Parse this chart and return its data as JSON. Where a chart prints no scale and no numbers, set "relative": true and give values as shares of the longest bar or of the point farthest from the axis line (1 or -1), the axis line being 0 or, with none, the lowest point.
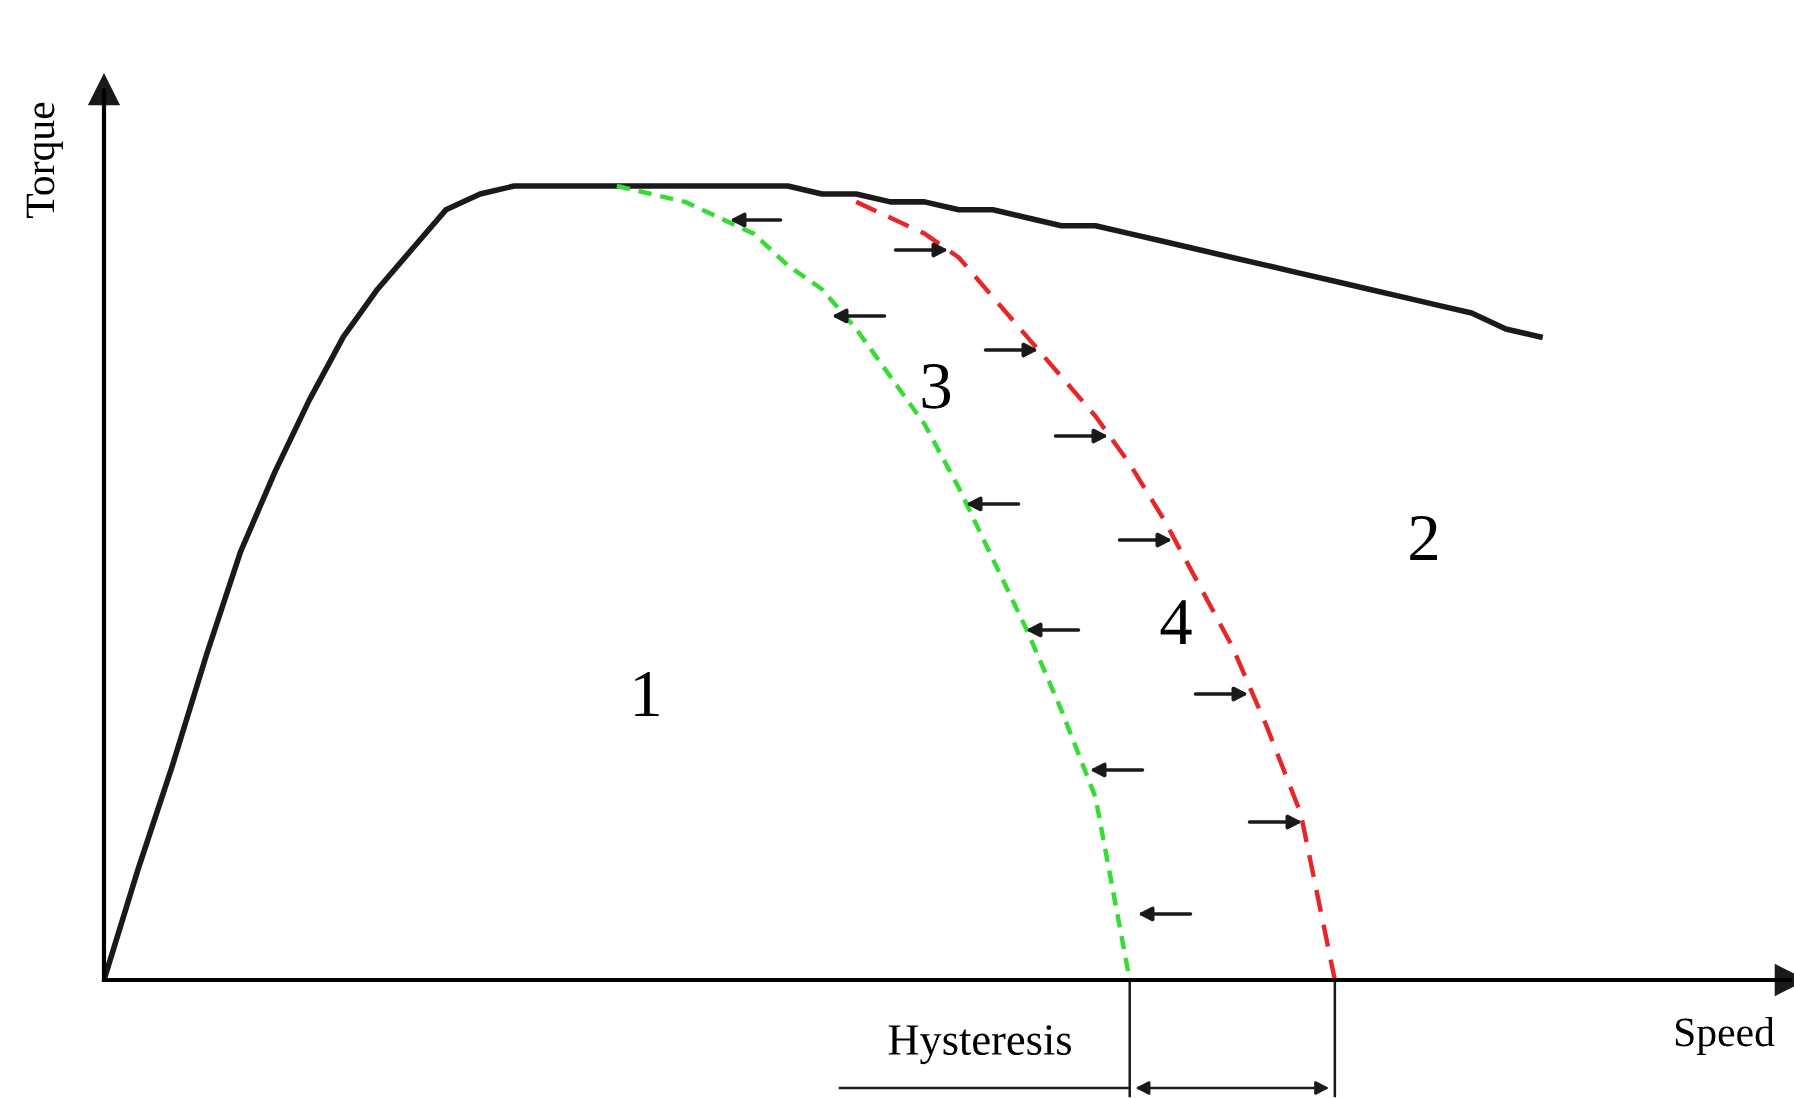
{
  "chart_data": {
    "type": "line",
    "relative": true,
    "xlabel": "Speed",
    "ylabel": "Torque",
    "legend": false,
    "marker": "none",
    "annotations": [
      "1",
      "2",
      "3",
      "4",
      "Hysteresis"
    ],
    "categories": [
      null,
      null,
      null,
      null,
      null,
      null,
      null,
      null,
      null,
      null,
      null,
      null,
      null,
      null,
      null,
      null,
      null,
      null,
      null,
      null,
      null,
      null,
      null,
      null,
      null,
      null,
      null,
      null,
      null,
      null,
      null,
      null,
      null,
      null,
      null,
      null,
      null,
      null,
      null,
      null,
      null,
      null,
      null
    ],
    "series": [
      {
        "color": "#1a1a1a",
        "line_style": "solid",
        "values": [
          0,
          0.14,
          0.27,
          0.41,
          0.54,
          0.64,
          0.73,
          0.81,
          0.87,
          0.92,
          0.97,
          0.99,
          1,
          1,
          1,
          1,
          1,
          1,
          1,
          1,
          1,
          0.99,
          0.99,
          0.98,
          0.98,
          0.97,
          0.97,
          0.96,
          0.95,
          0.95,
          0.94,
          0.93,
          0.92,
          0.91,
          0.9,
          0.89,
          0.88,
          0.87,
          0.86,
          0.85,
          0.84,
          0.82,
          0.81
        ]
      },
      {
        "color": "#33dd33",
        "line_style": "dotted",
        "values": [
          null,
          null,
          null,
          null,
          null,
          null,
          null,
          null,
          null,
          null,
          null,
          null,
          null,
          null,
          null,
          1,
          0.99,
          0.98,
          0.96,
          0.94,
          0.9,
          0.87,
          0.82,
          0.76,
          0.7,
          0.62,
          0.53,
          0.44,
          0.34,
          0.23,
          0,
          null,
          null,
          null,
          null,
          null,
          null,
          null,
          null,
          null,
          null,
          null,
          null
        ]
      },
      {
        "color": "#e8262a",
        "line_style": "dashed",
        "values": [
          null,
          null,
          null,
          null,
          null,
          null,
          null,
          null,
          null,
          null,
          null,
          null,
          null,
          null,
          null,
          null,
          null,
          null,
          null,
          null,
          null,
          null,
          0.98,
          0.96,
          0.94,
          0.91,
          0.86,
          0.81,
          0.76,
          0.71,
          0.65,
          0.58,
          0.5,
          0.42,
          0.32,
          0.21,
          0,
          null,
          null,
          null,
          null,
          null,
          null
        ]
      }
    ]
  }
}
